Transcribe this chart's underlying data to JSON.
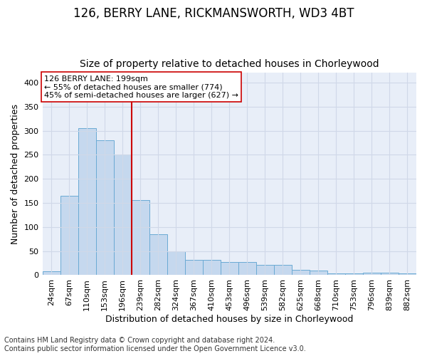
{
  "title1": "126, BERRY LANE, RICKMANSWORTH, WD3 4BT",
  "title2": "Size of property relative to detached houses in Chorleywood",
  "xlabel": "Distribution of detached houses by size in Chorleywood",
  "ylabel": "Number of detached properties",
  "bar_color": "#c5d8ee",
  "bar_edge_color": "#6aaad4",
  "bins": [
    "24sqm",
    "67sqm",
    "110sqm",
    "153sqm",
    "196sqm",
    "239sqm",
    "282sqm",
    "324sqm",
    "367sqm",
    "410sqm",
    "453sqm",
    "496sqm",
    "539sqm",
    "582sqm",
    "625sqm",
    "668sqm",
    "710sqm",
    "753sqm",
    "796sqm",
    "839sqm",
    "882sqm"
  ],
  "values": [
    8,
    165,
    305,
    280,
    251,
    156,
    85,
    50,
    31,
    32,
    27,
    27,
    21,
    21,
    11,
    9,
    4,
    3,
    5,
    5,
    3
  ],
  "vline_bin_index": 4.5,
  "vline_color": "#cc0000",
  "annotation_text": "126 BERRY LANE: 199sqm\n← 55% of detached houses are smaller (774)\n45% of semi-detached houses are larger (627) →",
  "annotation_box_color": "white",
  "annotation_box_edge": "#cc0000",
  "ylim": [
    0,
    420
  ],
  "yticks": [
    0,
    50,
    100,
    150,
    200,
    250,
    300,
    350,
    400
  ],
  "footnote": "Contains HM Land Registry data © Crown copyright and database right 2024.\nContains public sector information licensed under the Open Government Licence v3.0.",
  "background_color": "#e8eef8",
  "grid_color": "#d0d8e8",
  "title1_fontsize": 12,
  "title2_fontsize": 10,
  "tick_fontsize": 8,
  "xlabel_fontsize": 9,
  "ylabel_fontsize": 9,
  "footnote_fontsize": 7,
  "annot_fontsize": 8
}
